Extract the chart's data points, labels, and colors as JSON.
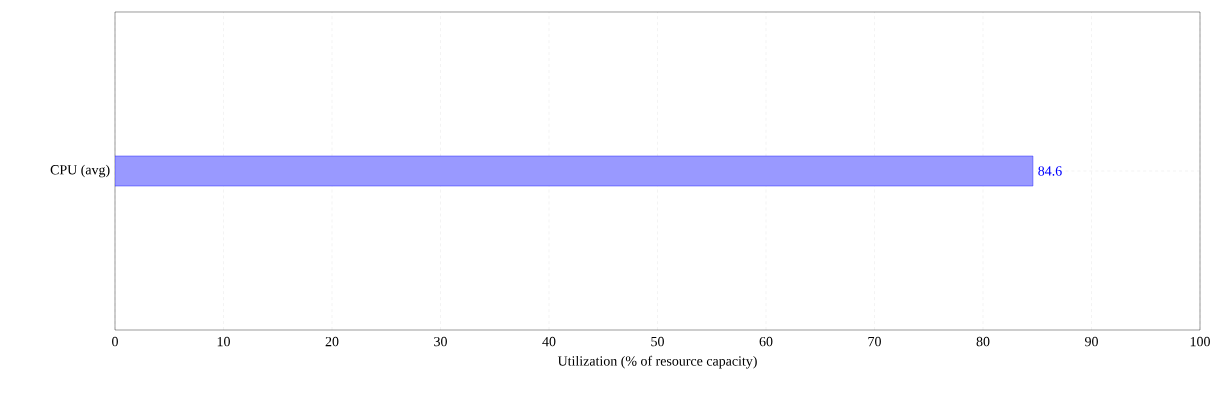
{
  "chart_data": {
    "type": "bar",
    "orientation": "horizontal",
    "categories": [
      "CPU (avg)"
    ],
    "values": [
      84.6
    ],
    "color": "#9999ff",
    "xlim": [
      0,
      100
    ],
    "xticks": [
      0,
      10,
      20,
      30,
      40,
      50,
      60,
      70,
      80,
      90,
      100
    ],
    "xlabel": "Utilization (% of resource capacity)",
    "grid": true,
    "data_labels": true
  }
}
